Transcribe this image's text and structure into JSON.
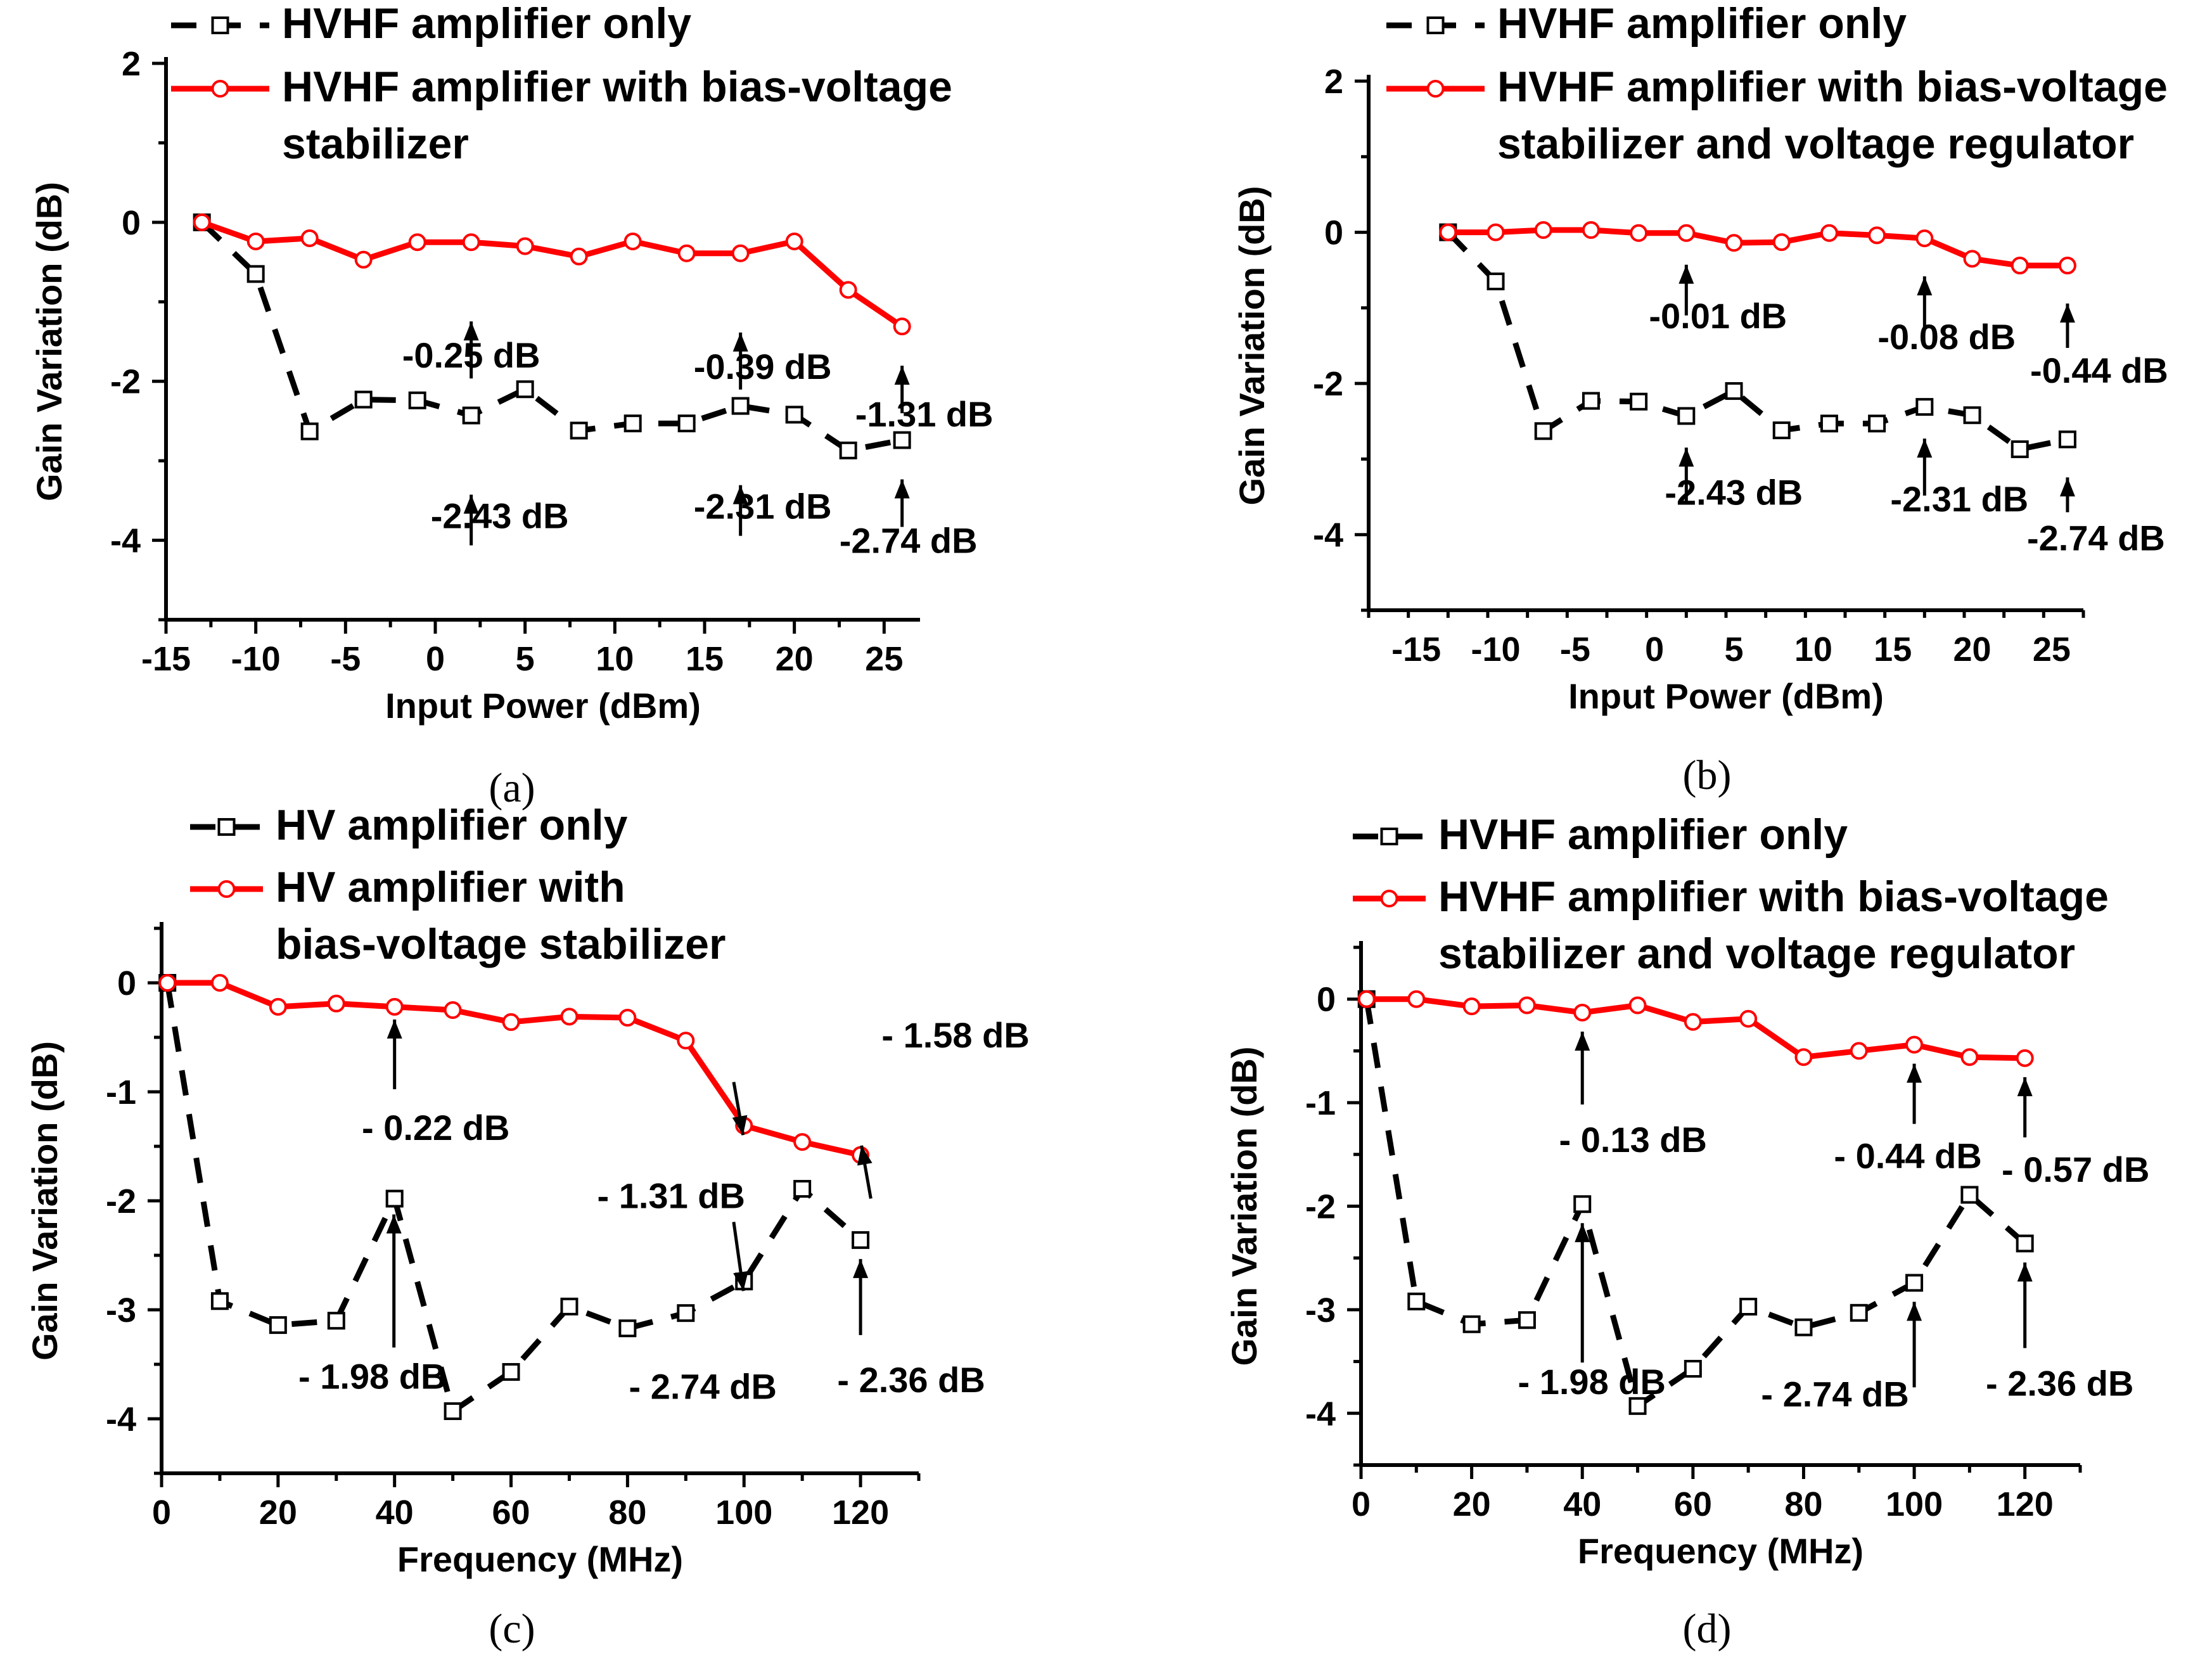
{
  "chart_data": [
    {
      "type": "line",
      "panel": "(a)",
      "xlabel": "Input Power (dBm)",
      "ylabel": "Gain Variation (dB)",
      "xlim": [
        -15,
        27
      ],
      "ylim": [
        -5,
        2
      ],
      "xticks": [
        -15,
        -10,
        -5,
        0,
        5,
        10,
        15,
        20,
        25
      ],
      "yticks": [
        2,
        0,
        -2,
        -4
      ],
      "series": [
        {
          "name": "HVHF amplifier only",
          "color": "#000000",
          "style": "dashed",
          "marker": "square",
          "legend_lines": [
            "HVHF amplifier only"
          ],
          "x": [
            -13,
            -10,
            -7,
            -4,
            -1,
            2,
            5,
            8,
            11,
            14,
            17,
            20,
            23,
            26
          ],
          "values": [
            0,
            -0.65,
            -2.63,
            -2.23,
            -2.24,
            -2.43,
            -2.1,
            -2.62,
            -2.53,
            -2.53,
            -2.31,
            -2.42,
            -2.87,
            -2.74
          ]
        },
        {
          "name": "HVHF amplifier with bias-voltage stabilizer",
          "color": "#ff0000",
          "style": "solid",
          "marker": "circle",
          "legend_lines": [
            "HVHF amplifier with bias-voltage",
            "stabilizer"
          ],
          "x": [
            -13,
            -10,
            -7,
            -4,
            -1,
            2,
            5,
            8,
            11,
            14,
            17,
            20,
            23,
            26
          ],
          "values": [
            0,
            -0.24,
            -0.2,
            -0.47,
            -0.25,
            -0.25,
            -0.3,
            -0.43,
            -0.24,
            -0.39,
            -0.39,
            -0.24,
            -0.85,
            -1.31
          ]
        }
      ],
      "annotations": [
        {
          "text": "-0.25 dB",
          "series": 1,
          "point_x": 2
        },
        {
          "text": "-0.39 dB",
          "series": 1,
          "point_x": 17
        },
        {
          "text": "-1.31 dB",
          "series": 1,
          "point_x": 26
        },
        {
          "text": "-2.43 dB",
          "series": 0,
          "point_x": 2
        },
        {
          "text": "-2.31 dB",
          "series": 0,
          "point_x": 17
        },
        {
          "text": "-2.74 dB",
          "series": 0,
          "point_x": 26
        }
      ]
    },
    {
      "type": "line",
      "panel": "(b)",
      "xlabel": "Input Power (dBm)",
      "ylabel": "Gain Variation (dB)",
      "xlim": [
        -18,
        27
      ],
      "ylim": [
        -5,
        2
      ],
      "xticks": [
        -15,
        -10,
        -5,
        0,
        5,
        10,
        15,
        20,
        25
      ],
      "yticks": [
        2,
        0,
        -2,
        -4
      ],
      "series": [
        {
          "name": "HVHF amplifier only",
          "color": "#000000",
          "style": "dashed",
          "marker": "square",
          "legend_lines": [
            "HVHF amplifier only"
          ],
          "x": [
            -13,
            -10,
            -7,
            -4,
            -1,
            2,
            5,
            8,
            11,
            14,
            17,
            20,
            23,
            26
          ],
          "values": [
            0,
            -0.65,
            -2.63,
            -2.23,
            -2.24,
            -2.43,
            -2.1,
            -2.62,
            -2.53,
            -2.53,
            -2.31,
            -2.42,
            -2.87,
            -2.74
          ]
        },
        {
          "name": "HVHF amplifier with bias-voltage stabilizer and voltage regulator",
          "color": "#ff0000",
          "style": "solid",
          "marker": "circle",
          "legend_lines": [
            "HVHF amplifier with bias-voltage",
            "stabilizer and voltage regulator"
          ],
          "x": [
            -13,
            -10,
            -7,
            -4,
            -1,
            2,
            5,
            8,
            11,
            14,
            17,
            20,
            23,
            26
          ],
          "values": [
            0,
            0,
            0.03,
            0.03,
            -0.01,
            -0.01,
            -0.14,
            -0.13,
            -0.01,
            -0.04,
            -0.08,
            -0.35,
            -0.44,
            -0.44
          ]
        }
      ],
      "annotations": [
        {
          "text": "-0.01 dB",
          "series": 1,
          "point_x": 2
        },
        {
          "text": "-0.08 dB",
          "series": 1,
          "point_x": 17
        },
        {
          "text": "-0.44 dB",
          "series": 1,
          "point_x": 26
        },
        {
          "text": "-2.43 dB",
          "series": 0,
          "point_x": 2
        },
        {
          "text": "-2.31 dB",
          "series": 0,
          "point_x": 17
        },
        {
          "text": "-2.74 dB",
          "series": 0,
          "point_x": 26
        }
      ]
    },
    {
      "type": "line",
      "panel": "(c)",
      "xlabel": "Frequency (MHz)",
      "ylabel": "Gain Variation (dB)",
      "xlim": [
        0,
        130
      ],
      "ylim": [
        -4.5,
        0.5
      ],
      "xticks": [
        0,
        20,
        40,
        60,
        80,
        100,
        120
      ],
      "yticks": [
        0,
        -1,
        -2,
        -3,
        -4
      ],
      "series": [
        {
          "name": "HV amplifier only",
          "color": "#000000",
          "style": "dashed",
          "marker": "square",
          "legend_lines": [
            "HV amplifier only"
          ],
          "x": [
            1,
            10,
            20,
            30,
            40,
            50,
            60,
            70,
            80,
            90,
            100,
            110,
            120
          ],
          "values": [
            0,
            -2.92,
            -3.14,
            -3.1,
            -1.98,
            -3.93,
            -3.57,
            -2.97,
            -3.17,
            -3.03,
            -2.74,
            -1.89,
            -2.36
          ]
        },
        {
          "name": "HV amplifier with bias-voltage stabilizer",
          "color": "#ff0000",
          "style": "solid",
          "marker": "circle",
          "legend_lines": [
            "HV amplifier with",
            "bias-voltage stabilizer"
          ],
          "x": [
            1,
            10,
            20,
            30,
            40,
            50,
            60,
            70,
            80,
            90,
            100,
            110,
            120
          ],
          "values": [
            0,
            0,
            -0.22,
            -0.19,
            -0.22,
            -0.25,
            -0.36,
            -0.31,
            -0.32,
            -0.53,
            -1.31,
            -1.46,
            -1.58
          ]
        }
      ],
      "annotations": [
        {
          "text": "- 0.22 dB",
          "series": 1,
          "point_x": 40
        },
        {
          "text": "- 1.31 dB",
          "series": 1,
          "point_x": 100
        },
        {
          "text": "- 1.58 dB",
          "series": 1,
          "point_x": 120
        },
        {
          "text": "- 1.98 dB",
          "series": 0,
          "point_x": 40
        },
        {
          "text": "- 2.74 dB",
          "series": 0,
          "point_x": 100
        },
        {
          "text": "- 2.36 dB",
          "series": 0,
          "point_x": 120
        }
      ]
    },
    {
      "type": "line",
      "panel": "(d)",
      "xlabel": "Frequency (MHz)",
      "ylabel": "Gain Variation (dB)",
      "xlim": [
        0,
        130
      ],
      "ylim": [
        -4.5,
        0.5
      ],
      "xticks": [
        0,
        20,
        40,
        60,
        80,
        100,
        120
      ],
      "yticks": [
        0,
        -1,
        -2,
        -3,
        -4
      ],
      "series": [
        {
          "name": "HVHF amplifier only",
          "color": "#000000",
          "style": "dashed",
          "marker": "square",
          "legend_lines": [
            "HVHF amplifier only"
          ],
          "x": [
            1,
            10,
            20,
            30,
            40,
            50,
            60,
            70,
            80,
            90,
            100,
            110,
            120
          ],
          "values": [
            0,
            -2.92,
            -3.14,
            -3.1,
            -1.98,
            -3.93,
            -3.57,
            -2.97,
            -3.17,
            -3.03,
            -2.74,
            -1.89,
            -2.36
          ]
        },
        {
          "name": "HVHF amplifier with bias-voltage stabilizer and voltage regulator",
          "color": "#ff0000",
          "style": "solid",
          "marker": "circle",
          "legend_lines": [
            "HVHF amplifier with bias-voltage",
            "stabilizer and voltage regulator"
          ],
          "x": [
            1,
            10,
            20,
            30,
            40,
            50,
            60,
            70,
            80,
            90,
            100,
            110,
            120
          ],
          "values": [
            0,
            0,
            -0.07,
            -0.06,
            -0.13,
            -0.06,
            -0.22,
            -0.19,
            -0.56,
            -0.5,
            -0.44,
            -0.56,
            -0.57
          ]
        }
      ],
      "annotations": [
        {
          "text": "- 0.13 dB",
          "series": 1,
          "point_x": 40
        },
        {
          "text": "- 0.44 dB",
          "series": 1,
          "point_x": 100
        },
        {
          "text": "- 0.57 dB",
          "series": 1,
          "point_x": 120
        },
        {
          "text": "- 1.98 dB",
          "series": 0,
          "point_x": 40
        },
        {
          "text": "- 2.74 dB",
          "series": 0,
          "point_x": 100
        },
        {
          "text": "- 2.36 dB",
          "series": 0,
          "point_x": 120
        }
      ]
    }
  ]
}
